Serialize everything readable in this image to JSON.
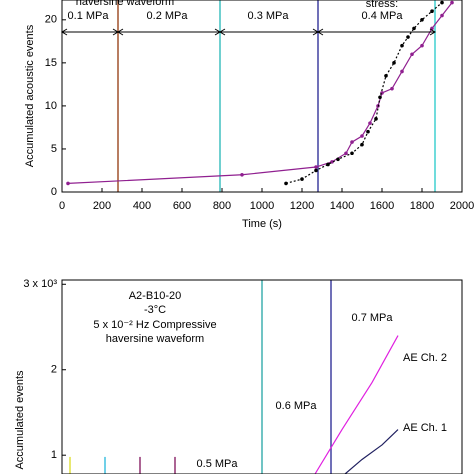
{
  "chart_data": [
    {
      "type": "line",
      "xlabel": "Time (s)",
      "ylabel": "Accumulated acoustic events",
      "xlim": [
        0,
        2000
      ],
      "xticks": [
        0,
        200,
        400,
        600,
        800,
        1000,
        1200,
        1400,
        1600,
        1800,
        2000
      ],
      "ylim": [
        0,
        22.3
      ],
      "yticks": [
        0,
        5,
        10,
        15,
        20
      ],
      "annotations": [
        "haversine waveform",
        "0.1 MPa",
        "0.2 MPa",
        "0.3 MPa",
        "stress:",
        "0.4 MPa"
      ],
      "vlines": [
        {
          "x": 280,
          "color": "#a0522d"
        },
        {
          "x": 790,
          "color": "#40c0c0"
        },
        {
          "x": 1280,
          "color": "#4040a0"
        },
        {
          "x": 1865,
          "color": "#40d0d0"
        }
      ],
      "series": [
        {
          "color": "#902090",
          "dash": false,
          "x": [
            30,
            900,
            1270,
            1350,
            1420,
            1450,
            1500,
            1540,
            1580,
            1600,
            1650,
            1700,
            1750,
            1800,
            1850,
            1900,
            1950
          ],
          "values": [
            1.0,
            2.0,
            2.9,
            3.5,
            4.5,
            5.8,
            6.5,
            8,
            10,
            11.5,
            12,
            14,
            16,
            17,
            19,
            20.5,
            22
          ]
        },
        {
          "color": "#000000",
          "dash": true,
          "x": [
            1120,
            1200,
            1270,
            1330,
            1380,
            1450,
            1500,
            1530,
            1570,
            1590,
            1620,
            1660,
            1700,
            1730,
            1760,
            1800,
            1850,
            1900
          ],
          "values": [
            1,
            1.5,
            2.5,
            3.2,
            3.8,
            4.5,
            5.5,
            7,
            8.5,
            11,
            13.5,
            15,
            17,
            18,
            19,
            20,
            21,
            22
          ]
        }
      ]
    },
    {
      "type": "line",
      "ylabel": "Accumulated events",
      "xlim": [
        0,
        400
      ],
      "ylim": [
        0.78,
        3.05
      ],
      "yticks": [
        {
          "value": 3,
          "label": "3 x 10³"
        },
        2,
        1
      ],
      "annotations": [
        "A2-B10-20",
        "-3°C",
        "5 x 10⁻² Hz Compressive",
        "haversine waveform",
        "0.7 MPa",
        "0.6 MPa",
        "0.5 MPa",
        "AE Ch. 2",
        "AE Ch. 1"
      ],
      "vlines": [
        {
          "x": 8,
          "y": [
            0.78,
            0.98
          ],
          "color": "#e0e040"
        },
        {
          "x": 43,
          "y": [
            0.78,
            0.98
          ],
          "color": "#40c0e0"
        },
        {
          "x": 78,
          "y": [
            0.78,
            0.98
          ],
          "color": "#903070"
        },
        {
          "x": 113,
          "y": [
            0.78,
            0.98
          ],
          "color": "#903070"
        },
        {
          "x": 200,
          "color": "#40b0b0"
        },
        {
          "x": 269,
          "color": "#4040a0"
        }
      ],
      "series": [
        {
          "color": "#e020e0",
          "dash": false,
          "x": [
            253,
            280,
            310,
            336
          ],
          "values": [
            0.78,
            1.3,
            1.85,
            2.4
          ]
        },
        {
          "color": "#202060",
          "dash": false,
          "x": [
            283,
            300,
            320,
            336
          ],
          "values": [
            0.78,
            0.95,
            1.12,
            1.3
          ]
        }
      ]
    }
  ]
}
